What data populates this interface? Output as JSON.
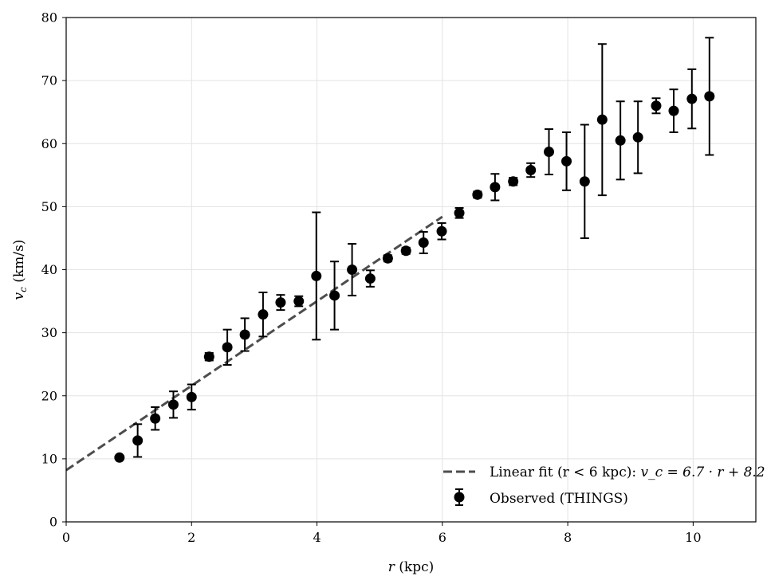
{
  "chart_data": {
    "type": "scatter",
    "xlabel": "r (kpc)",
    "ylabel": "v_c (km/s)",
    "xlim": [
      0,
      11
    ],
    "ylim": [
      0,
      80
    ],
    "x_ticks": [
      0,
      2,
      4,
      6,
      8,
      10
    ],
    "y_ticks": [
      0,
      10,
      20,
      30,
      40,
      50,
      60,
      70,
      80
    ],
    "grid": true,
    "legend_position": "lower-right",
    "series": [
      {
        "name": "Observed (THINGS)",
        "kind": "errorbar",
        "color": "#000000",
        "points": [
          {
            "x": 0.85,
            "y": 10.2,
            "err": 0.0
          },
          {
            "x": 1.14,
            "y": 12.9,
            "err": 2.6
          },
          {
            "x": 1.42,
            "y": 16.4,
            "err": 1.8
          },
          {
            "x": 1.71,
            "y": 18.6,
            "err": 2.1
          },
          {
            "x": 2.0,
            "y": 19.8,
            "err": 2.0
          },
          {
            "x": 2.28,
            "y": 26.2,
            "err": 0.6
          },
          {
            "x": 2.57,
            "y": 27.7,
            "err": 2.8
          },
          {
            "x": 2.85,
            "y": 29.7,
            "err": 2.6
          },
          {
            "x": 3.14,
            "y": 32.9,
            "err": 3.5
          },
          {
            "x": 3.42,
            "y": 34.8,
            "err": 1.2
          },
          {
            "x": 3.71,
            "y": 35.0,
            "err": 0.8
          },
          {
            "x": 3.99,
            "y": 39.0,
            "err": 10.1
          },
          {
            "x": 4.28,
            "y": 35.9,
            "err": 5.4
          },
          {
            "x": 4.56,
            "y": 40.0,
            "err": 4.1
          },
          {
            "x": 4.85,
            "y": 38.6,
            "err": 1.3
          },
          {
            "x": 5.13,
            "y": 41.8,
            "err": 0.5
          },
          {
            "x": 5.42,
            "y": 43.0,
            "err": 0.5
          },
          {
            "x": 5.7,
            "y": 44.3,
            "err": 1.7
          },
          {
            "x": 5.99,
            "y": 46.1,
            "err": 1.3
          },
          {
            "x": 6.27,
            "y": 49.0,
            "err": 0.8
          },
          {
            "x": 6.56,
            "y": 51.9,
            "err": 0.5
          },
          {
            "x": 6.84,
            "y": 53.1,
            "err": 2.1
          },
          {
            "x": 7.13,
            "y": 54.0,
            "err": 0.6
          },
          {
            "x": 7.41,
            "y": 55.8,
            "err": 1.1
          },
          {
            "x": 7.7,
            "y": 58.7,
            "err": 3.6
          },
          {
            "x": 7.98,
            "y": 57.2,
            "err": 4.6
          },
          {
            "x": 8.27,
            "y": 54.0,
            "err": 9.0
          },
          {
            "x": 8.55,
            "y": 63.8,
            "err": 12.0
          },
          {
            "x": 8.84,
            "y": 60.5,
            "err": 6.2
          },
          {
            "x": 9.12,
            "y": 61.0,
            "err": 5.7
          },
          {
            "x": 9.41,
            "y": 66.0,
            "err": 1.2
          },
          {
            "x": 9.69,
            "y": 65.2,
            "err": 3.4
          },
          {
            "x": 9.98,
            "y": 67.1,
            "err": 4.7
          },
          {
            "x": 10.26,
            "y": 67.5,
            "err": 9.3
          }
        ]
      },
      {
        "name": "Linear fit (r < 6 kpc): v_c = 6.7 · r + 8.2",
        "kind": "line",
        "style": "dashed",
        "color": "#4d4d4d",
        "slope": 6.7,
        "intercept": 8.2,
        "x_range": [
          0,
          6
        ]
      }
    ],
    "legend": {
      "fit_prefix": "Linear fit (r < 6 kpc): ",
      "fit_formula": "v_c = 6.7 · r + 8.2",
      "observed": "Observed (THINGS)"
    }
  }
}
